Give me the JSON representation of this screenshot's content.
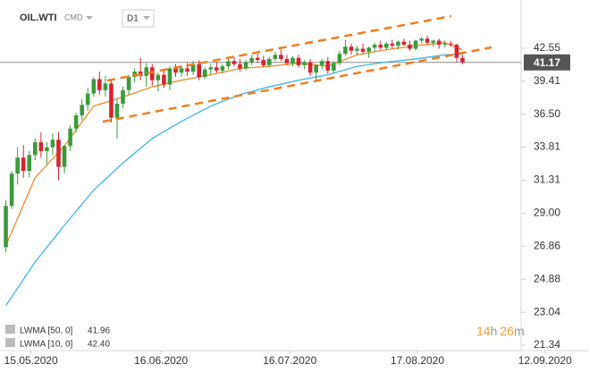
{
  "header": {
    "symbol": "OIL.WTI",
    "market": "CMD",
    "timeframe": "D1"
  },
  "chart_data": {
    "type": "candlestick",
    "log_scale": true,
    "ylim": [
      20.73,
      47.1
    ],
    "yticks": [
      21.34,
      23.04,
      24.88,
      26.86,
      {
        "value": 29,
        "label": "29.00"
      },
      31.31,
      33.81,
      {
        "value": 36.5,
        "label": "36.50"
      },
      39.41,
      42.55
    ],
    "xlim": [
      -1,
      99
    ],
    "xticks": [
      {
        "value": 4.3,
        "label": "15.05.2020"
      },
      {
        "value": 26.5,
        "label": "16.06.2020"
      },
      {
        "value": 48.5,
        "label": "16.07.2020"
      },
      {
        "value": 70.3,
        "label": "17.08.2020"
      },
      {
        "value": 92.1,
        "label": "12.09.2020"
      }
    ],
    "up_color": "#3b9b3b",
    "down_color": "#d8232f",
    "open": [
      26.8,
      29.5,
      31.8,
      33,
      32,
      33.2,
      34.2,
      33.5,
      33.8,
      34.4,
      32.3,
      33.9,
      35.3,
      36.4,
      37.3,
      38.3,
      39.6,
      38.6,
      39.2,
      36.2,
      37.4,
      38.6,
      39.8,
      40.3,
      39.9,
      40.7,
      39.5,
      40,
      39.1,
      40.6,
      40.2,
      40.6,
      40.3,
      41,
      39.8,
      40.5,
      40.7,
      40.4,
      40.8,
      41.3,
      41,
      40.6,
      41.2,
      41.6,
      41.4,
      40.9,
      41.5,
      41.9,
      41.5,
      41.1,
      41.6,
      40.9,
      41.2,
      40.2,
      40.9,
      41.3,
      40.4,
      41.1,
      42,
      42.7,
      42.3,
      42.5,
      42.2,
      42.6,
      42.9,
      42.6,
      43,
      42.8,
      43.2,
      42.9,
      42.5,
      43.3,
      43.5,
      43.1,
      43.3,
      42.9,
      43,
      42.9,
      41.6
    ],
    "high": [
      29.9,
      32,
      33.8,
      34,
      33.5,
      34.5,
      35,
      34.2,
      34.9,
      35,
      34,
      35.6,
      36.6,
      37.8,
      38.8,
      39.8,
      40.3,
      39.9,
      39.6,
      37.8,
      38.9,
      40,
      40.6,
      41.6,
      41.1,
      41,
      40.2,
      40.5,
      40.8,
      41,
      40.9,
      41.1,
      41.3,
      41.4,
      40.7,
      41,
      41.2,
      41,
      41.6,
      41.7,
      41.5,
      41.4,
      41.9,
      42,
      41.8,
      41.7,
      42.2,
      42.4,
      41.9,
      41.8,
      41.9,
      41.4,
      41.5,
      41,
      41.5,
      41.7,
      41.3,
      42.3,
      43.4,
      43,
      42.8,
      43,
      42.7,
      43.1,
      43.3,
      43.2,
      43.4,
      43.3,
      43.5,
      43.3,
      43.4,
      43.7,
      43.8,
      43.4,
      43.5,
      43.3,
      43.3,
      43,
      41.9
    ],
    "low": [
      26.5,
      29.3,
      31,
      31.5,
      31.5,
      32.8,
      33,
      32.5,
      33.2,
      31.3,
      31.8,
      33.5,
      35,
      36,
      36.8,
      38,
      38.2,
      38,
      35.8,
      34.5,
      37,
      38.2,
      39.3,
      39.5,
      38.9,
      39,
      38.5,
      38.8,
      38.6,
      39.8,
      39.8,
      39.9,
      40,
      39.5,
      39.6,
      40,
      40.2,
      40.1,
      40.5,
      40.8,
      40.3,
      40.4,
      40.9,
      41.1,
      40.7,
      40.7,
      41.3,
      41.3,
      40.9,
      40.8,
      40.7,
      40.5,
      39.9,
      39.4,
      40.5,
      40.1,
      40.1,
      40.9,
      41.8,
      41.9,
      41.9,
      42,
      41.6,
      42.2,
      42.4,
      42.4,
      42.5,
      42.4,
      42.8,
      42.3,
      42.3,
      43,
      42.9,
      42.7,
      42.5,
      42.6,
      42.7,
      41.2,
      41
    ],
    "close": [
      29.5,
      31.8,
      33,
      32,
      33.2,
      34.2,
      33.5,
      33.8,
      34.4,
      32.3,
      33.9,
      35.3,
      36.4,
      37.3,
      38.3,
      39.6,
      38.6,
      39.2,
      36.2,
      37.4,
      38.6,
      39.8,
      40.3,
      39.9,
      40.7,
      39.5,
      40,
      39.1,
      40.6,
      40.2,
      40.6,
      40.3,
      41,
      39.8,
      40.5,
      40.7,
      40.4,
      40.8,
      41.3,
      41,
      40.6,
      41.2,
      41.6,
      41.4,
      40.9,
      41.5,
      41.9,
      41.5,
      41.1,
      41.6,
      40.9,
      41.2,
      40.2,
      40.9,
      41.3,
      40.4,
      41.1,
      42,
      42.7,
      42.3,
      42.5,
      42.2,
      42.6,
      42.9,
      42.6,
      43,
      42.8,
      43.2,
      42.9,
      42.5,
      43.3,
      43.5,
      43.1,
      43.3,
      42.9,
      43,
      42.9,
      41.6,
      41.17
    ],
    "current_price": 41.17,
    "series": [
      {
        "name": "LWMA [50, 0]",
        "color": "#3db5e6",
        "x": [
          0,
          5,
          10,
          15,
          20,
          25,
          30,
          35,
          40,
          45,
          50,
          55,
          60,
          65,
          70,
          75,
          78
        ],
        "values": [
          23.4,
          25.9,
          28.2,
          30.6,
          32.6,
          34.5,
          35.9,
          37.2,
          38.2,
          38.9,
          39.5,
          40,
          40.8,
          41.2,
          41.5,
          41.9,
          41.96
        ]
      },
      {
        "name": "LWMA [10, 0]",
        "color": "#f08a2c",
        "x": [
          0,
          5,
          10,
          15,
          20,
          25,
          30,
          35,
          40,
          45,
          50,
          55,
          60,
          65,
          70,
          75,
          78
        ],
        "values": [
          26.9,
          31.5,
          33.9,
          37.2,
          38,
          38.9,
          39.5,
          40,
          40.6,
          40.8,
          41.1,
          40.8,
          41.9,
          42.4,
          42.8,
          43.1,
          42.4
        ],
        "value_labels": [
          null,
          null,
          null,
          null,
          null,
          null,
          null,
          null,
          null,
          null,
          null,
          null,
          null,
          null,
          null,
          null,
          "42.40"
        ]
      }
    ],
    "countdown": {
      "hours": 14,
      "hours_unit": "h",
      "minutes": 26,
      "minutes_unit": "m"
    }
  }
}
